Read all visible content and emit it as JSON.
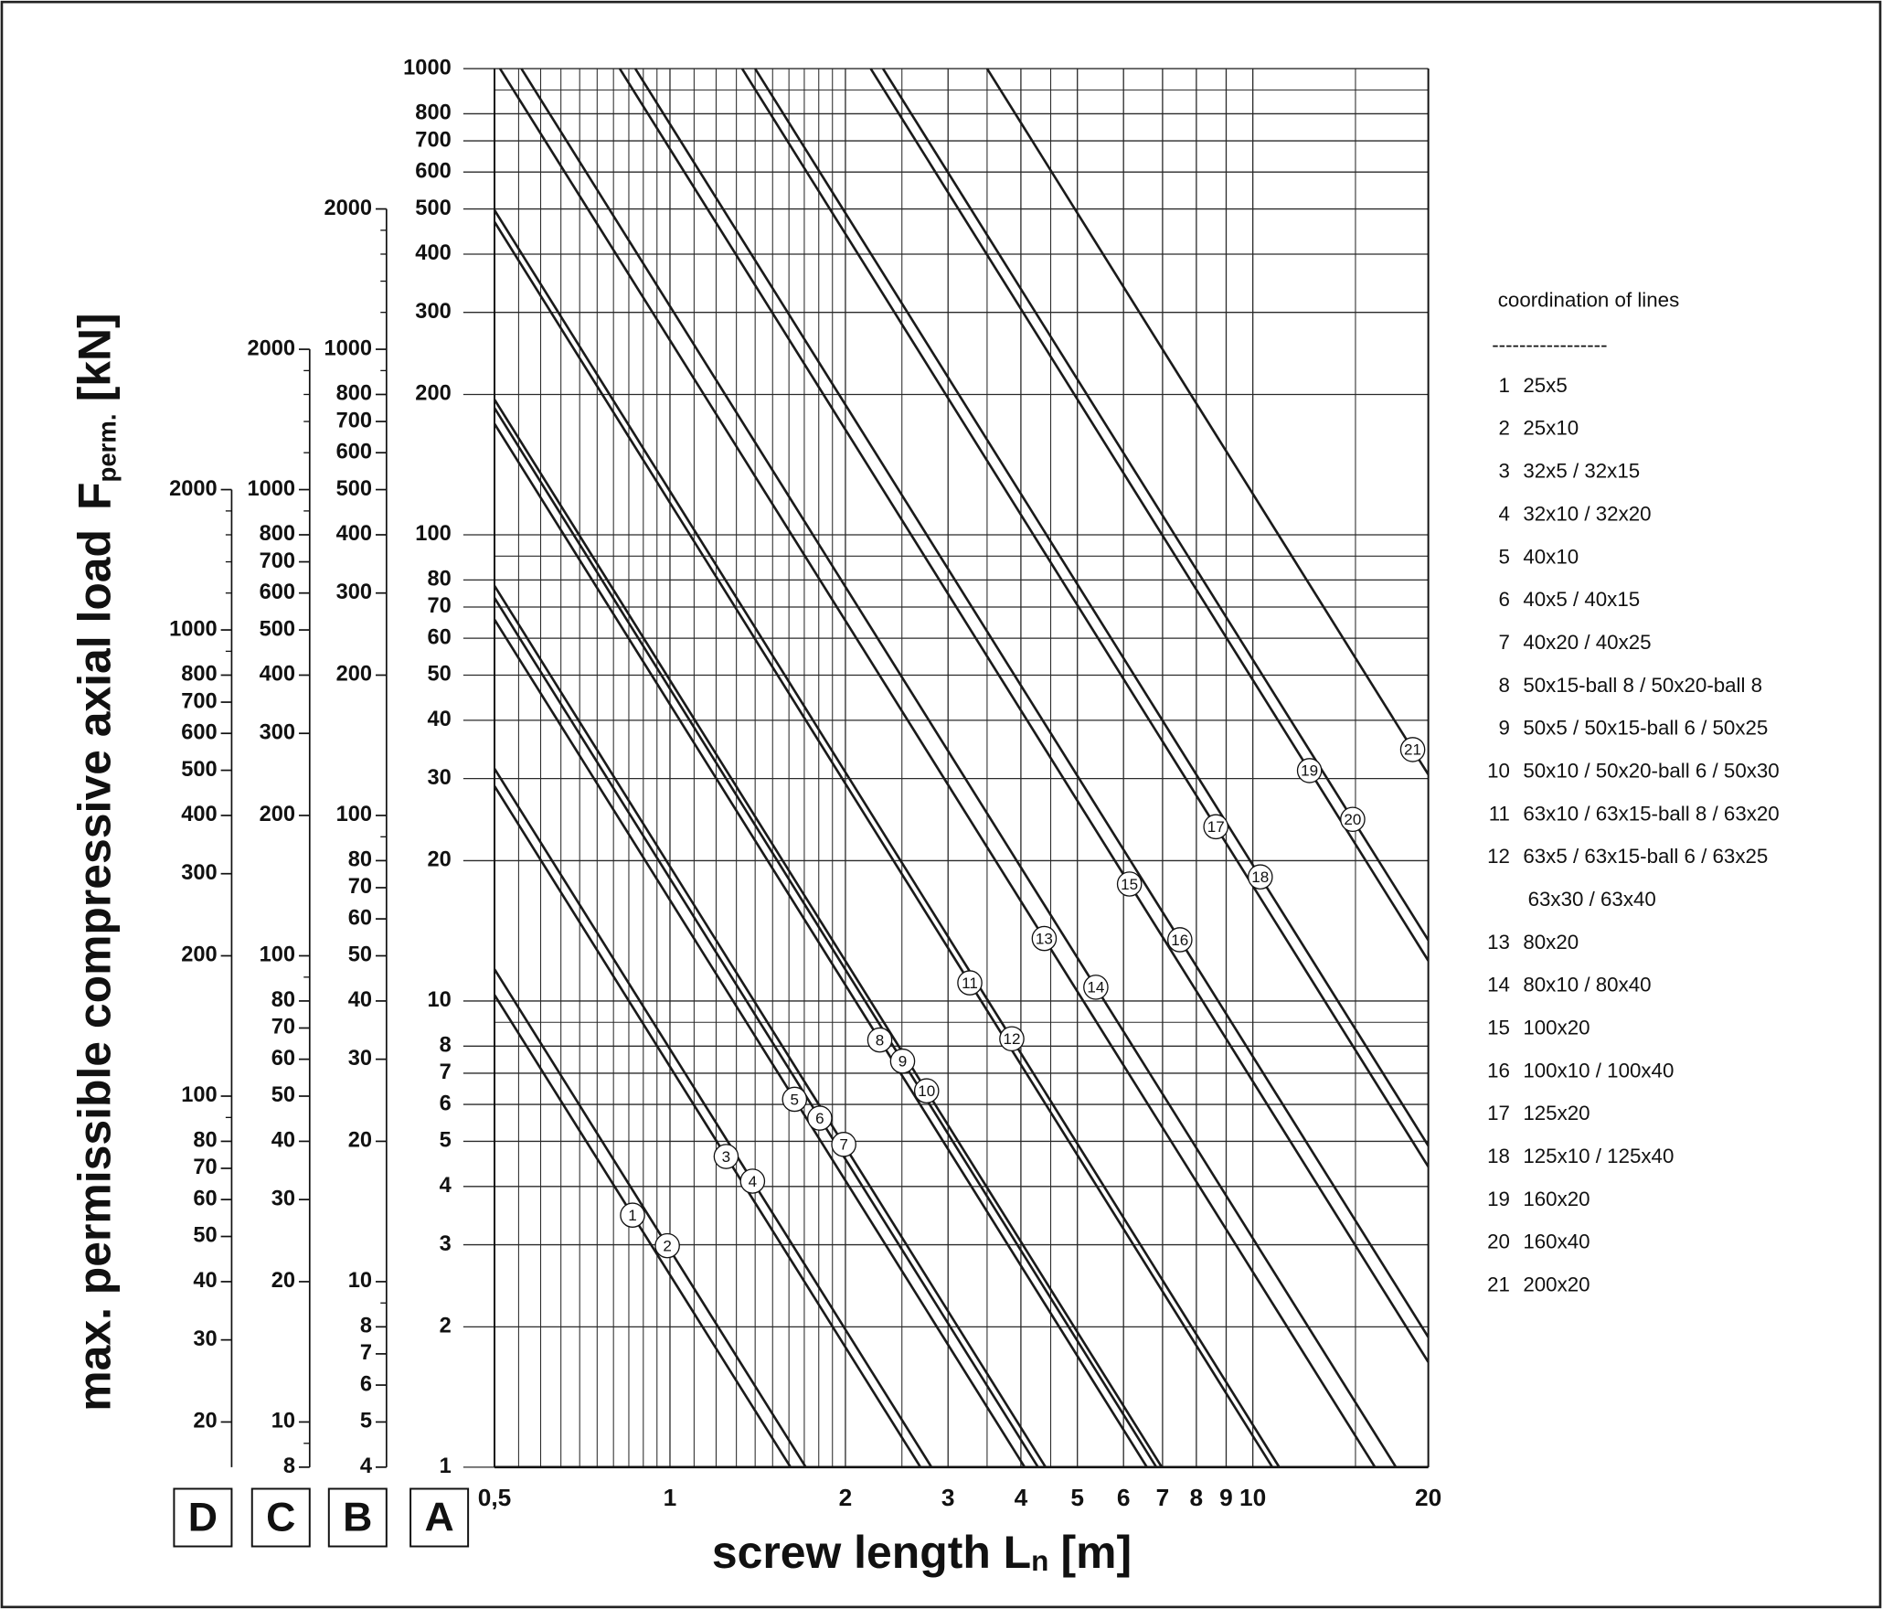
{
  "chart_data": {
    "type": "line",
    "log_x": true,
    "log_y": true,
    "grid": true,
    "line_color": "#1a1a1a",
    "y_label": "max. permissible compressive axial load",
    "y_label_symbol": "F",
    "y_label_sub": "perm.",
    "y_label_unit": "[kN]",
    "x_label": "screw length L",
    "x_label_sub": "n",
    "x_label_unit": "[m]",
    "axis_name": "A",
    "xlim": [
      0.5,
      20
    ],
    "xticks": [
      {
        "value": 0.5,
        "label": "0,5"
      },
      1,
      2,
      3,
      4,
      5,
      6,
      7,
      8,
      9,
      10,
      20
    ],
    "xminor": [
      0.55,
      0.6,
      0.65,
      0.7,
      0.75,
      0.8,
      0.85,
      0.9,
      0.95,
      1.1,
      1.2,
      1.3,
      1.4,
      1.5,
      1.6,
      1.7,
      1.8,
      1.9,
      2.5,
      3.5,
      4.5,
      15
    ],
    "ylim": [
      1,
      1000
    ],
    "yticks": [
      1,
      2,
      3,
      4,
      5,
      6,
      7,
      8,
      10,
      20,
      30,
      40,
      50,
      60,
      70,
      80,
      100,
      200,
      300,
      400,
      500,
      600,
      700,
      800,
      1000
    ],
    "yminor": [
      9,
      90,
      900
    ],
    "extra_axes": [
      {
        "name": "B",
        "ylim": [
          4,
          2000
        ],
        "yticks": [
          4,
          5,
          6,
          7,
          8,
          10,
          20,
          30,
          40,
          50,
          60,
          70,
          80,
          100,
          200,
          300,
          400,
          500,
          600,
          700,
          800,
          1000,
          2000
        ],
        "yminor": [
          9,
          90,
          900,
          1200,
          1400,
          1600,
          1800
        ]
      },
      {
        "name": "C",
        "ylim": [
          8,
          2000
        ],
        "yticks": [
          8,
          10,
          20,
          30,
          40,
          50,
          60,
          70,
          80,
          100,
          200,
          300,
          400,
          500,
          600,
          700,
          800,
          1000,
          2000
        ],
        "yminor": [
          9,
          90,
          900,
          1200,
          1400,
          1600,
          1800
        ]
      },
      {
        "name": "D",
        "ylim": [
          16,
          2000
        ],
        "yticks": [
          20,
          30,
          40,
          50,
          60,
          70,
          80,
          100,
          200,
          300,
          400,
          500,
          600,
          700,
          800,
          1000,
          2000
        ],
        "yminor": [
          90,
          900,
          1200,
          1400,
          1600,
          1800
        ]
      }
    ],
    "legend_title": "coordination of lines",
    "legend_separator": "-----------------",
    "series": [
      {
        "label": "1",
        "name": "25x5",
        "x": [
          0.5,
          1.61
        ],
        "values": [
          10.3,
          1
        ]
      },
      {
        "label": "2",
        "name": "25x10",
        "x": [
          0.5,
          1.71
        ],
        "values": [
          11.7,
          1
        ]
      },
      {
        "label": "3",
        "name": "32x5 / 32x15",
        "x": [
          0.5,
          2.69
        ],
        "values": [
          28.9,
          1
        ]
      },
      {
        "label": "4",
        "name": "32x10 / 32x20",
        "x": [
          0.5,
          2.81
        ],
        "values": [
          31.5,
          1
        ]
      },
      {
        "label": "5",
        "name": "40x10",
        "x": [
          0.5,
          4.06
        ],
        "values": [
          65.8,
          1
        ]
      },
      {
        "label": "6",
        "name": "40x5 / 40x15",
        "x": [
          0.5,
          4.28
        ],
        "values": [
          73.2,
          1
        ]
      },
      {
        "label": "7",
        "name": "40x20 / 40x25",
        "x": [
          0.5,
          4.41
        ],
        "values": [
          77.7,
          1
        ]
      },
      {
        "label": "8",
        "name": "50x15-ball 8 / 50x20-ball 8",
        "x": [
          0.5,
          6.58
        ],
        "values": [
          173,
          1
        ]
      },
      {
        "label": "9",
        "name": "50x5 / 50x15-ball 6 / 50x25",
        "x": [
          0.5,
          6.83
        ],
        "values": [
          187,
          1
        ]
      },
      {
        "label": "10",
        "name": "50x10 / 50x20-ball 6 / 50x30",
        "x": [
          0.5,
          6.98
        ],
        "values": [
          195,
          1
        ]
      },
      {
        "label": "11",
        "name": "63x10 / 63x15-ball 8 / 63x20",
        "x": [
          0.5,
          10.8
        ],
        "values": [
          469,
          1
        ]
      },
      {
        "label": "12",
        "name": "63x5 / 63x15-ball 6 / 63x25",
        "name_line2": "63x30 / 63x40",
        "x": [
          0.5,
          11.1
        ],
        "values": [
          497,
          1
        ]
      },
      {
        "label": "13",
        "name": "80x20",
        "x": [
          0.511,
          16.2
        ],
        "values": [
          1000,
          1
        ]
      },
      {
        "label": "14",
        "name": "80x10 / 80x40",
        "x": [
          0.556,
          17.6
        ],
        "values": [
          1000,
          1
        ]
      },
      {
        "label": "15",
        "name": "100x20",
        "x": [
          0.82,
          20
        ],
        "values": [
          1000,
          1.68
        ]
      },
      {
        "label": "16",
        "name": "100x10 / 100x40",
        "x": [
          0.872,
          20
        ],
        "values": [
          1000,
          1.9
        ]
      },
      {
        "label": "17",
        "name": "125x20",
        "x": [
          1.33,
          20
        ],
        "values": [
          1000,
          4.41
        ]
      },
      {
        "label": "18",
        "name": "125x10 / 125x40",
        "x": [
          1.4,
          20
        ],
        "values": [
          1000,
          4.89
        ]
      },
      {
        "label": "19",
        "name": "160x20",
        "x": [
          2.21,
          20
        ],
        "values": [
          1000,
          12.2
        ]
      },
      {
        "label": "20",
        "name": "160x40",
        "x": [
          2.32,
          20
        ],
        "values": [
          1000,
          13.5
        ]
      },
      {
        "label": "21",
        "name": "200x20",
        "x": [
          3.5,
          20
        ],
        "values": [
          1000,
          30.6
        ]
      }
    ]
  }
}
